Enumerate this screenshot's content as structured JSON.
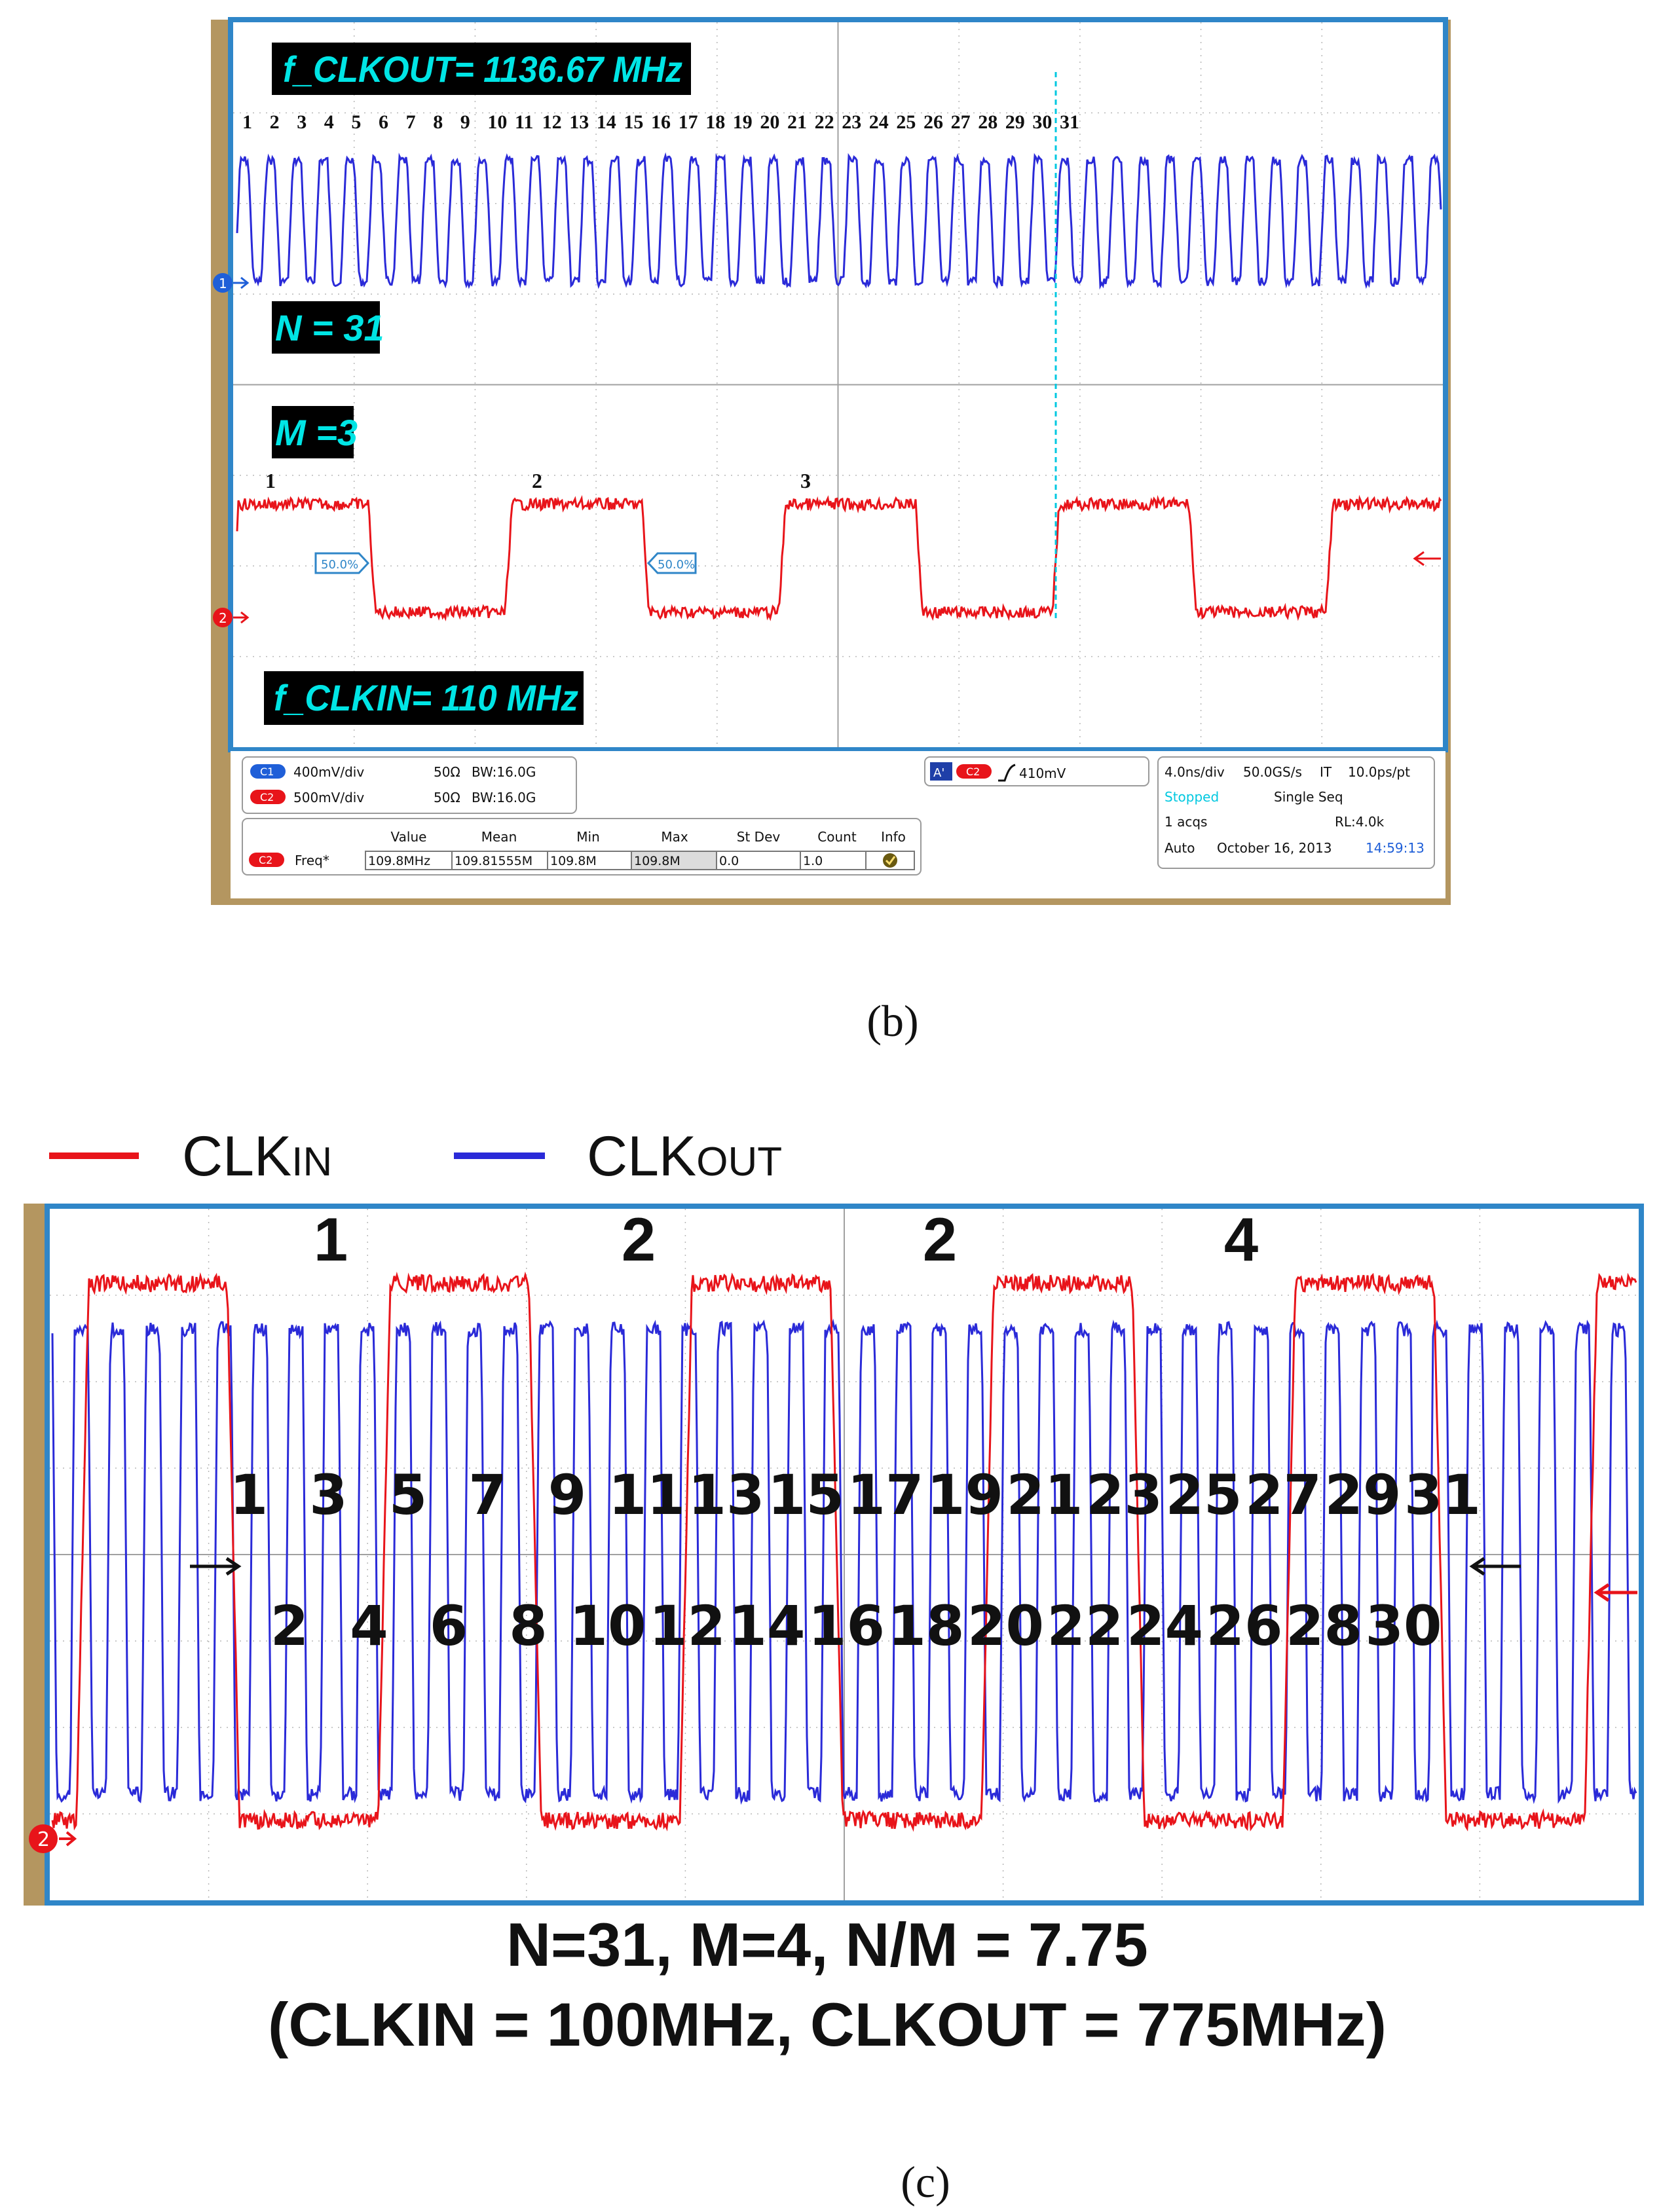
{
  "figure_b": {
    "caption": "(b)",
    "label_fout": "f_CLKOUT= 1136.67 MHz",
    "label_n": "N = 31",
    "label_m": "M =3",
    "label_fin": "f_CLKIN= 110 MHz",
    "cycle_numbers": [
      "1",
      "2",
      "3",
      "4",
      "5",
      "6",
      "7",
      "8",
      "9",
      "10",
      "11",
      "12",
      "13",
      "14",
      "15",
      "16",
      "17",
      "18",
      "19",
      "20",
      "21",
      "22",
      "23",
      "24",
      "25",
      "26",
      "27",
      "28",
      "29",
      "30",
      "31"
    ],
    "in_cycle_numbers": [
      "1",
      "2",
      "3"
    ],
    "marker_left": "50.0%",
    "marker_right": "50.0%",
    "ch1_marker": "1",
    "ch2_marker": "2",
    "status": {
      "c1_badge": "C1",
      "c1_scale": "400mV/div",
      "c1_imp": "50Ω",
      "c1_bw": "BW:16.0G",
      "c2_badge": "C2",
      "c2_scale": "500mV/div",
      "c2_imp": "50Ω",
      "c2_bw": "BW:16.0G",
      "trig_a": "A'",
      "trig_ch": "C2",
      "trig_level": "410mV",
      "timebase": "4.0ns/div",
      "sample_rate": "50.0GS/s",
      "it": "IT",
      "resolution": "10.0ps/pt",
      "state": "Stopped",
      "seq": "Single Seq",
      "acqs": "1 acqs",
      "rl": "RL:4.0k",
      "mode": "Auto",
      "date": "October 16, 2013",
      "time": "14:59:13"
    },
    "measure": {
      "headers": [
        "Value",
        "Mean",
        "Min",
        "Max",
        "St Dev",
        "Count",
        "Info"
      ],
      "row_badge": "C2",
      "row_label": "Freq*",
      "row": [
        "109.8MHz",
        "109.81555M",
        "109.8M",
        "109.8M",
        "0.0",
        "1.0"
      ]
    }
  },
  "figure_c": {
    "caption": "(c)",
    "legend_in": "CLKIN",
    "legend_out": "CLKOUT",
    "top_numbers": [
      "1",
      "2",
      "2",
      "4"
    ],
    "odd_numbers": [
      "1",
      "3",
      "5",
      "7",
      "9",
      "11",
      "13",
      "15",
      "17",
      "19",
      "21",
      "23",
      "25",
      "27",
      "29",
      "31"
    ],
    "even_numbers": [
      "2",
      "4",
      "6",
      "8",
      "10",
      "12",
      "14",
      "16",
      "18",
      "20",
      "22",
      "24",
      "26",
      "28",
      "30"
    ],
    "ch2_marker": "2",
    "summary_line1": "N=31, M=4,  N/M = 7.75",
    "summary_line2": "(CLKIN = 100MHz,  CLKOUT = 775MHz)"
  },
  "colors": {
    "clk_in": "#e8141a",
    "clk_out": "#2a2ad8",
    "scope_frame": "#2f86c8",
    "bezel": "#b49660",
    "label_bg": "#000000",
    "label_fg": "#00e5e5"
  },
  "chart_data": [
    {
      "type": "line",
      "title": "f_CLKOUT= 1136.67 MHz",
      "series": [
        {
          "name": "",
          "cycles": 31,
          "channel": "C1"
        },
        {
          "name": "",
          "cycles": 3,
          "channel": "C2"
        }
      ],
      "annotations": [
        "N = 31",
        "M =3",
        "f_CLKIN= 110 MHz"
      ],
      "grid": true
    },
    {
      "type": "line",
      "series": [
        {
          "name": "CLKIN",
          "cycles": 4
        },
        {
          "name": "CLKOUT",
          "cycles": 31
        }
      ],
      "annotations": [
        "N=31, M=4,  N/M = 7.75",
        "(CLKIN = 100MHz,  CLKOUT = 775MHz)"
      ],
      "grid": true
    }
  ]
}
